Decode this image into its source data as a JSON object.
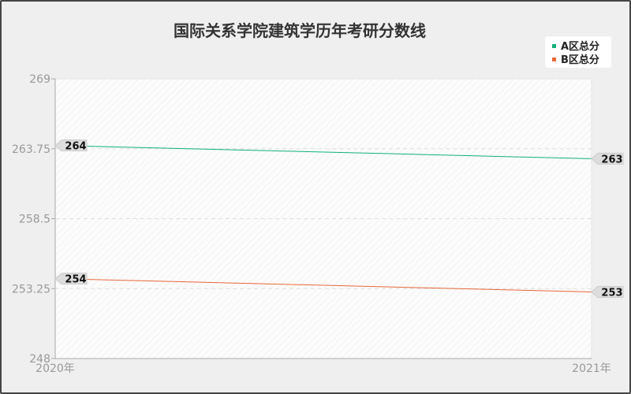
{
  "chart_data": {
    "type": "line",
    "title": "国际关系学院建筑学历年考研分数线",
    "categories": [
      "2020年",
      "2021年"
    ],
    "series": [
      {
        "name": "A区总分",
        "values": [
          264,
          263
        ],
        "color": "#10b07a"
      },
      {
        "name": "B区总分",
        "values": [
          254,
          253
        ],
        "color": "#e8673a"
      }
    ],
    "yticks": [
      "248",
      "253.25",
      "258.5",
      "263.75",
      "269"
    ],
    "ylim": [
      248,
      269
    ],
    "grid": true,
    "legend": "top-right"
  }
}
